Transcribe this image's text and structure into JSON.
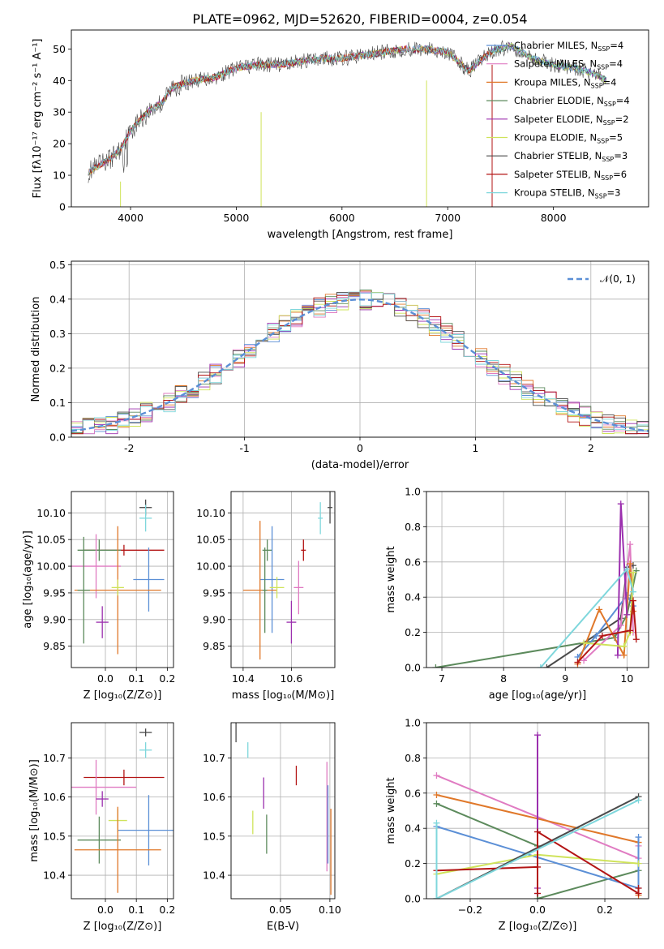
{
  "figure_title": "PLATE=0962, MJD=52620, FIBERID=0004, z=0.054",
  "colors": {
    "grid": "#b0b0b0",
    "axes": "#000000",
    "gaussian": "#5b8fd6"
  },
  "chart_data": [
    {
      "id": "spectrum",
      "type": "line",
      "title": "PLATE=0962, MJD=52620, FIBERID=0004, z=0.054",
      "xlabel": "wavelength [Angstrom, rest frame]",
      "ylabel": "Flux [fλ10⁻¹⁷ erg cm⁻² s⁻¹ A⁻¹]",
      "xlim": [
        3440,
        8900
      ],
      "ylim": [
        0,
        56
      ],
      "xticks": [
        4000,
        5000,
        6000,
        7000,
        8000
      ],
      "yticks": [
        0,
        10,
        20,
        30,
        40,
        50
      ],
      "grid": false,
      "legend_position": "top-right",
      "continuum": {
        "x": [
          3600,
          3700,
          3800,
          3900,
          4000,
          4100,
          4200,
          4300,
          4400,
          4600,
          4800,
          5000,
          5200,
          5400,
          5600,
          5800,
          6000,
          6200,
          6400,
          6600,
          6800,
          7000,
          7200,
          7400,
          7600,
          7800,
          8000,
          8200,
          8400,
          8500
        ],
        "y": [
          11,
          13,
          15,
          18,
          24,
          28,
          31,
          33,
          38,
          40,
          41,
          44,
          45,
          45,
          46,
          47,
          47,
          48,
          49,
          50,
          50,
          49,
          43,
          49,
          51,
          47,
          45,
          44,
          42,
          40
        ]
      },
      "series": [
        {
          "name": "Chabrier MILES, N_SSP=4",
          "label": "Chabrier MILES, N",
          "sub": "SSP",
          "suffix": "=4",
          "color": "#5b8fd6",
          "n_ssp": 4
        },
        {
          "name": "Salpeter MILES, N_SSP=4",
          "label": "Salpeter MILES, N",
          "sub": "SSP",
          "suffix": "=4",
          "color": "#e07bc2",
          "n_ssp": 4
        },
        {
          "name": "Kroupa MILES, N_SSP=4",
          "label": "Kroupa MILES, N",
          "sub": "SSP",
          "suffix": "=4",
          "color": "#e0782a",
          "n_ssp": 4
        },
        {
          "name": "Chabrier ELODIE, N_SSP=4",
          "label": "Chabrier ELODIE, N",
          "sub": "SSP",
          "suffix": "=4",
          "color": "#5c8a5c",
          "n_ssp": 4
        },
        {
          "name": "Salpeter ELODIE, N_SSP=2",
          "label": "Salpeter ELODIE, N",
          "sub": "SSP",
          "suffix": "=2",
          "color": "#9b2fae",
          "n_ssp": 2
        },
        {
          "name": "Kroupa ELODIE, N_SSP=5",
          "label": "Kroupa ELODIE, N",
          "sub": "SSP",
          "suffix": "=5",
          "color": "#cfe35a",
          "n_ssp": 5
        },
        {
          "name": "Chabrier STELIB, N_SSP=3",
          "label": "Chabrier STELIB, N",
          "sub": "SSP",
          "suffix": "=3",
          "color": "#4a4a4a",
          "n_ssp": 3
        },
        {
          "name": "Salpeter STELIB, N_SSP=6",
          "label": "Salpeter STELIB, N",
          "sub": "SSP",
          "suffix": "=6",
          "color": "#b31414",
          "n_ssp": 6
        },
        {
          "name": "Kroupa STELIB, N_SSP=3",
          "label": "Kroupa STELIB, N",
          "sub": "SSP",
          "suffix": "=3",
          "color": "#7fd7dc",
          "n_ssp": 3
        }
      ]
    },
    {
      "id": "residuals",
      "type": "line",
      "xlabel": "(data-model)/error",
      "ylabel": "Normed distribution",
      "xlim": [
        -2.5,
        2.5
      ],
      "ylim": [
        0,
        0.51
      ],
      "xticks": [
        -2,
        -1,
        0,
        1,
        2
      ],
      "yticks": [
        0.0,
        0.1,
        0.2,
        0.3,
        0.4,
        0.5
      ],
      "grid": true,
      "legend_position": "top-right",
      "legend": "𝒩(0, 1)",
      "gaussian_mean": 0,
      "gaussian_sigma": 1
    },
    {
      "id": "age_vs_Z",
      "type": "scatter",
      "xlabel": "Z [log₁₀(Z/Z⊙)]",
      "ylabel": "age  [log₁₀(age/yr)]",
      "xlim": [
        -0.11,
        0.22
      ],
      "ylim": [
        9.81,
        10.14
      ],
      "xticks": [
        0.0,
        0.1,
        0.2
      ],
      "xticklabels": [
        "0.0",
        "0.1",
        "0.2"
      ],
      "yticks": [
        9.85,
        9.9,
        9.95,
        10.0,
        10.05,
        10.1
      ],
      "yticklabels": [
        "9.85",
        "9.90",
        "9.95",
        "10.00",
        "10.05",
        "10.10"
      ],
      "grid": true,
      "points": [
        {
          "x": 0.13,
          "y": 10.11,
          "xerr": 0.02,
          "yerr": 0.015,
          "color": "#4a4a4a"
        },
        {
          "x": 0.13,
          "y": 10.09,
          "xerr": 0.02,
          "yerr": 0.025,
          "color": "#7fd7dc"
        },
        {
          "x": 0.06,
          "y": 10.03,
          "xerr": 0.13,
          "yerr": 0.01,
          "color": "#b31414"
        },
        {
          "x": -0.02,
          "y": 10.03,
          "xerr": 0.07,
          "yerr": 0.02,
          "color": "#5c8a5c"
        },
        {
          "x": -0.03,
          "y": 10.0,
          "xerr": 0.08,
          "yerr": 0.06,
          "color": "#e07bc2"
        },
        {
          "x": 0.14,
          "y": 9.975,
          "xerr": 0.05,
          "yerr": 0.06,
          "color": "#5b8fd6"
        },
        {
          "x": 0.04,
          "y": 9.955,
          "xerr": 0.14,
          "yerr": 0.12,
          "color": "#e0782a"
        },
        {
          "x": 0.04,
          "y": 9.96,
          "xerr": 0.02,
          "yerr": 0.015,
          "color": "#cfe35a"
        },
        {
          "x": -0.01,
          "y": 9.895,
          "xerr": 0.02,
          "yerr": 0.03,
          "color": "#9b2fae"
        },
        {
          "x": -0.07,
          "y": 9.955,
          "xerr": 0.02,
          "yerr": 0.1,
          "color": "#5c8a5c"
        }
      ]
    },
    {
      "id": "age_vs_mass",
      "type": "scatter",
      "xlabel": "mass [log₁₀(M/M⊙)]",
      "ylabel": "",
      "xlim": [
        10.35,
        10.78
      ],
      "ylim": [
        9.81,
        10.14
      ],
      "xticks": [
        10.4,
        10.6
      ],
      "xticklabels": [
        "10.4",
        "10.6"
      ],
      "yticks": [
        9.85,
        9.9,
        9.95,
        10.0,
        10.05,
        10.1
      ],
      "yticklabels": [
        "9.85",
        "9.90",
        "9.95",
        "10.00",
        "10.05",
        "10.10"
      ],
      "grid": true,
      "points": [
        {
          "x": 10.76,
          "y": 10.11,
          "xerr": 0.01,
          "yerr": 0.03,
          "color": "#4a4a4a"
        },
        {
          "x": 10.72,
          "y": 10.09,
          "xerr": 0.01,
          "yerr": 0.03,
          "color": "#7fd7dc"
        },
        {
          "x": 10.65,
          "y": 10.03,
          "xerr": 0.01,
          "yerr": 0.02,
          "color": "#b31414"
        },
        {
          "x": 10.5,
          "y": 10.03,
          "xerr": 0.02,
          "yerr": 0.02,
          "color": "#5c8a5c"
        },
        {
          "x": 10.63,
          "y": 9.96,
          "xerr": 0.02,
          "yerr": 0.05,
          "color": "#e07bc2"
        },
        {
          "x": 10.52,
          "y": 9.975,
          "xerr": 0.05,
          "yerr": 0.1,
          "color": "#5b8fd6"
        },
        {
          "x": 10.47,
          "y": 9.955,
          "xerr": 0.07,
          "yerr": 0.13,
          "color": "#e0782a"
        },
        {
          "x": 10.54,
          "y": 9.96,
          "xerr": 0.03,
          "yerr": 0.02,
          "color": "#cfe35a"
        },
        {
          "x": 10.6,
          "y": 9.895,
          "xerr": 0.02,
          "yerr": 0.04,
          "color": "#9b2fae"
        },
        {
          "x": 10.49,
          "y": 9.955,
          "xerr": 0.01,
          "yerr": 0.08,
          "color": "#5c8a5c"
        }
      ]
    },
    {
      "id": "weight_vs_age",
      "type": "line",
      "xlabel": "age  [log₁₀(age/yr)]",
      "ylabel": "mass weight",
      "xlim": [
        6.75,
        10.35
      ],
      "ylim": [
        0,
        1.0
      ],
      "xticks": [
        7,
        8,
        9,
        10
      ],
      "yticks": [
        0.0,
        0.2,
        0.4,
        0.6,
        0.8,
        1.0
      ],
      "grid": true,
      "series": [
        {
          "color": "#5c8a5c",
          "x": [
            6.9,
            9.8,
            10.0,
            10.15
          ],
          "y": [
            0.0,
            0.17,
            0.3,
            0.55
          ]
        },
        {
          "color": "#4a4a4a",
          "x": [
            8.7,
            9.9,
            10.0,
            10.1
          ],
          "y": [
            0.0,
            0.28,
            0.57,
            0.58
          ]
        },
        {
          "color": "#5b8fd6",
          "x": [
            9.2,
            9.5,
            10.0,
            10.1
          ],
          "y": [
            0.06,
            0.18,
            0.41,
            0.35
          ]
        },
        {
          "color": "#e07bc2",
          "x": [
            9.3,
            9.9,
            10.05,
            10.1
          ],
          "y": [
            0.04,
            0.24,
            0.7,
            0.2
          ]
        },
        {
          "color": "#e0782a",
          "x": [
            9.2,
            9.55,
            9.95,
            10.05,
            10.1
          ],
          "y": [
            0.02,
            0.33,
            0.07,
            0.59,
            0.32
          ]
        },
        {
          "color": "#9b2fae",
          "x": [
            9.85,
            9.9,
            10.0
          ],
          "y": [
            0.07,
            0.93,
            0.3
          ]
        },
        {
          "color": "#cfe35a",
          "x": [
            9.3,
            9.95,
            10.05,
            10.1
          ],
          "y": [
            0.14,
            0.12,
            0.2,
            0.54
          ]
        },
        {
          "color": "#b31414",
          "x": [
            9.2,
            9.6,
            10.05,
            10.1,
            10.15
          ],
          "y": [
            0.03,
            0.18,
            0.21,
            0.38,
            0.16
          ]
        },
        {
          "color": "#7fd7dc",
          "x": [
            8.6,
            10.0,
            10.1
          ],
          "y": [
            0.0,
            0.56,
            0.43
          ]
        }
      ]
    },
    {
      "id": "mass_vs_Z",
      "type": "scatter",
      "xlabel": "Z [log₁₀(Z/Z⊙)]",
      "ylabel": "mass [log₁₀(M/M⊙)]",
      "xlim": [
        -0.11,
        0.22
      ],
      "ylim": [
        10.34,
        10.79
      ],
      "xticks": [
        0.0,
        0.1,
        0.2
      ],
      "xticklabels": [
        "0.0",
        "0.1",
        "0.2"
      ],
      "yticks": [
        10.4,
        10.5,
        10.6,
        10.7
      ],
      "yticklabels": [
        "10.4",
        "10.5",
        "10.6",
        "10.7"
      ],
      "grid": true,
      "points": [
        {
          "x": 0.13,
          "y": 10.765,
          "xerr": 0.02,
          "yerr": 0.01,
          "color": "#4a4a4a"
        },
        {
          "x": 0.13,
          "y": 10.72,
          "xerr": 0.02,
          "yerr": 0.02,
          "color": "#7fd7dc"
        },
        {
          "x": 0.06,
          "y": 10.65,
          "xerr": 0.13,
          "yerr": 0.02,
          "color": "#b31414"
        },
        {
          "x": -0.03,
          "y": 10.625,
          "xerr": 0.13,
          "yerr": 0.07,
          "color": "#e07bc2"
        },
        {
          "x": -0.01,
          "y": 10.595,
          "xerr": 0.02,
          "yerr": 0.02,
          "color": "#9b2fae"
        },
        {
          "x": 0.04,
          "y": 10.54,
          "xerr": 0.03,
          "yerr": 0.03,
          "color": "#cfe35a"
        },
        {
          "x": 0.14,
          "y": 10.515,
          "xerr": 0.1,
          "yerr": 0.09,
          "color": "#5b8fd6"
        },
        {
          "x": -0.02,
          "y": 10.49,
          "xerr": 0.07,
          "yerr": 0.06,
          "color": "#5c8a5c"
        },
        {
          "x": 0.04,
          "y": 10.465,
          "xerr": 0.14,
          "yerr": 0.11,
          "color": "#e0782a"
        }
      ]
    },
    {
      "id": "mass_vs_ebv",
      "type": "scatter",
      "xlabel": "E(B-V)",
      "ylabel": "",
      "xlim": [
        0.0,
        0.105
      ],
      "ylim": [
        10.34,
        10.79
      ],
      "xticks": [
        0.05,
        0.1
      ],
      "xticklabels": [
        "0.05",
        "0.10"
      ],
      "yticks": [
        10.4,
        10.5,
        10.6,
        10.7
      ],
      "yticklabels": [
        "10.4",
        "10.5",
        "10.6",
        "10.7"
      ],
      "grid": true,
      "points": [
        {
          "x": 0.005,
          "y": 10.765,
          "xerr": 0,
          "yerr": 0.025,
          "color": "#4a4a4a"
        },
        {
          "x": 0.017,
          "y": 10.72,
          "xerr": 0,
          "yerr": 0.02,
          "color": "#7fd7dc"
        },
        {
          "x": 0.066,
          "y": 10.655,
          "xerr": 0,
          "yerr": 0.025,
          "color": "#b31414"
        },
        {
          "x": 0.033,
          "y": 10.61,
          "xerr": 0,
          "yerr": 0.04,
          "color": "#9b2fae"
        },
        {
          "x": 0.022,
          "y": 10.535,
          "xerr": 0,
          "yerr": 0.03,
          "color": "#cfe35a"
        },
        {
          "x": 0.036,
          "y": 10.505,
          "xerr": 0,
          "yerr": 0.05,
          "color": "#5c8a5c"
        },
        {
          "x": 0.097,
          "y": 10.55,
          "xerr": 0,
          "yerr": 0.14,
          "color": "#e07bc2"
        },
        {
          "x": 0.098,
          "y": 10.53,
          "xerr": 0,
          "yerr": 0.1,
          "color": "#5b8fd6"
        },
        {
          "x": 0.101,
          "y": 10.46,
          "xerr": 0,
          "yerr": 0.11,
          "color": "#e0782a"
        }
      ]
    },
    {
      "id": "weight_vs_Z",
      "type": "line",
      "xlabel": "Z [log₁₀(Z/Z⊙)]",
      "ylabel": "mass weight",
      "xlim": [
        -0.33,
        0.33
      ],
      "ylim": [
        0,
        1.0
      ],
      "xticks": [
        -0.2,
        0.0,
        0.2
      ],
      "xticklabels": [
        "−0.2",
        "0.0",
        "0.2"
      ],
      "yticks": [
        0.0,
        0.2,
        0.4,
        0.6,
        0.8,
        1.0
      ],
      "grid": true,
      "series": [
        {
          "color": "#e07bc2",
          "x": [
            -0.3,
            0.3,
            0.3
          ],
          "y": [
            0.7,
            0.23,
            0.3
          ]
        },
        {
          "color": "#e0782a",
          "x": [
            -0.3,
            0.3,
            0.3
          ],
          "y": [
            0.59,
            0.32,
            0.02
          ]
        },
        {
          "color": "#5c8a5c",
          "x": [
            -0.3,
            0.0,
            0.0,
            0.3
          ],
          "y": [
            0.54,
            0.3,
            0.0,
            0.16
          ]
        },
        {
          "color": "#5b8fd6",
          "x": [
            -0.3,
            0.3,
            0.3
          ],
          "y": [
            0.41,
            0.06,
            0.35
          ]
        },
        {
          "color": "#9b2fae",
          "x": [
            0.0,
            0.0,
            0.0
          ],
          "y": [
            0.03,
            0.93,
            0.06
          ]
        },
        {
          "color": "#cfe35a",
          "x": [
            -0.3,
            0.0,
            0.3
          ],
          "y": [
            0.14,
            0.25,
            0.2
          ]
        },
        {
          "color": "#4a4a4a",
          "x": [
            -0.3,
            0.3
          ],
          "y": [
            0.0,
            0.58
          ]
        },
        {
          "color": "#b31414",
          "x": [
            -0.3,
            0.0,
            0.0,
            0.0,
            0.3,
            0.3
          ],
          "y": [
            0.16,
            0.18,
            0.03,
            0.38,
            0.03,
            0.06
          ]
        },
        {
          "color": "#7fd7dc",
          "x": [
            -0.3,
            -0.3,
            0.3
          ],
          "y": [
            0.43,
            0.0,
            0.56
          ]
        }
      ]
    }
  ]
}
